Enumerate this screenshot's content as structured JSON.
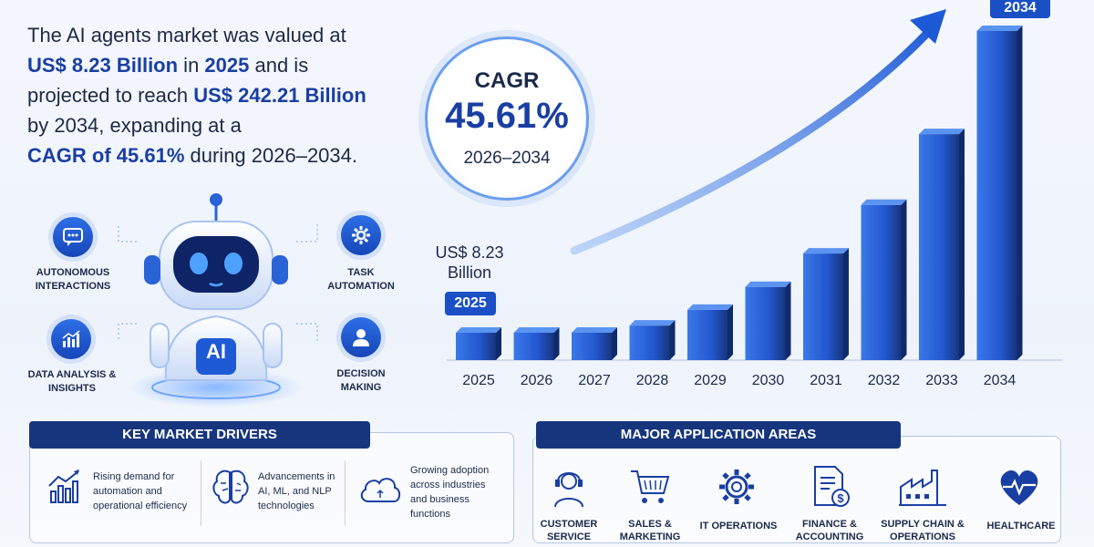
{
  "intro": {
    "l1": "The AI agents market was valued at",
    "l2a": "US$ 8.23 Billion",
    "l2b": " in ",
    "l2c": "2025",
    "l2d": " and is",
    "l3a": "projected to reach ",
    "l3b": "US$ 242.21 Billion",
    "l4": "by 2034, expanding at a",
    "l5a": "CAGR of 45.61%",
    "l5b": " during 2026–2034."
  },
  "cagr": {
    "title": "CAGR",
    "value": "45.61%",
    "period": "2026–2034"
  },
  "start_callout": {
    "line1": "US$ 8.23",
    "line2": "Billion",
    "year_badge": "2025"
  },
  "end_badge": "2034",
  "robot": {
    "chip": "AI"
  },
  "features": [
    {
      "label_l1": "AUTONOMOUS",
      "label_l2": "INTERACTIONS",
      "icon": "chat-icon"
    },
    {
      "label_l1": "TASK",
      "label_l2": "AUTOMATION",
      "icon": "gear-icon"
    },
    {
      "label_l1": "DATA ANALYSIS &",
      "label_l2": "INSIGHTS",
      "icon": "bar-chart-icon"
    },
    {
      "label_l1": "DECISION",
      "label_l2": "MAKING",
      "icon": "person-icon"
    }
  ],
  "drivers": {
    "title": "KEY MARKET DRIVERS",
    "items": [
      {
        "l1": "Rising demand for",
        "l2": "automation and",
        "l3": "operational efficiency",
        "icon": "growth-chart-icon"
      },
      {
        "l1": "Advancements in",
        "l2": "AI, ML, and NLP",
        "l3": "technologies",
        "icon": "brain-icon"
      },
      {
        "l1": "Growing adoption",
        "l2": "across industries",
        "l3": "and business",
        "l4": "functions",
        "icon": "cloud-icon"
      }
    ]
  },
  "applications": {
    "title": "MAJOR APPLICATION AREAS",
    "items": [
      {
        "l1": "CUSTOMER",
        "l2": "SERVICE",
        "icon": "headset-icon"
      },
      {
        "l1": "SALES &",
        "l2": "MARKETING",
        "icon": "cart-icon"
      },
      {
        "l1": "IT OPERATIONS",
        "l2": "",
        "icon": "gear-icon"
      },
      {
        "l1": "FINANCE &",
        "l2": "ACCOUNTING",
        "icon": "document-dollar-icon"
      },
      {
        "l1": "SUPPLY CHAIN &",
        "l2": "OPERATIONS",
        "icon": "factory-icon"
      },
      {
        "l1": "HEALTHCARE",
        "l2": "",
        "icon": "heart-pulse-icon"
      }
    ]
  },
  "colors": {
    "accent": "#1a3fa3",
    "bar_dark": "#16357d",
    "bar_light": "#3a78e8",
    "header_bg": "#16357d"
  },
  "chart_data": {
    "type": "bar",
    "categories": [
      "2025",
      "2026",
      "2027",
      "2028",
      "2029",
      "2030",
      "2031",
      "2032",
      "2033",
      "2034"
    ],
    "values": [
      8.23,
      11.98,
      17.45,
      25.41,
      37.0,
      53.88,
      78.45,
      114.23,
      166.33,
      242.21
    ],
    "ylim": [
      0,
      242.21
    ],
    "grid": false,
    "legend": "none",
    "annotations": [
      "US$ 8.23 Billion",
      "2034"
    ]
  }
}
